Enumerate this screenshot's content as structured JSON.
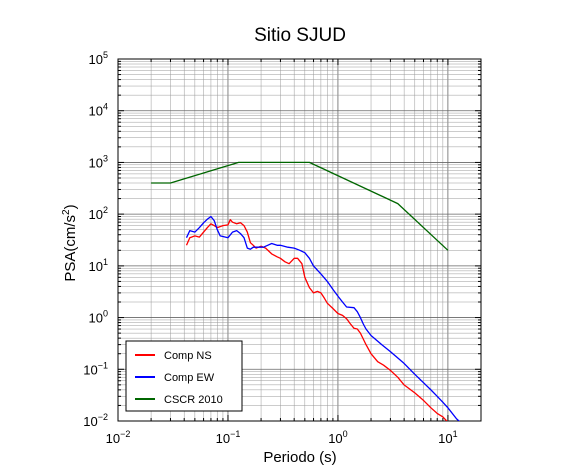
{
  "chart_data": {
    "type": "line",
    "title": "Sitio SJUD",
    "xlabel": "Periodo (s)",
    "ylabel_main": "PSA(cm/s",
    "ylabel_sup": "2",
    "ylabel_close": ")",
    "xscale": "log",
    "yscale": "log",
    "xlim": [
      0.01,
      20
    ],
    "ylim": [
      0.01,
      100000
    ],
    "grid": true,
    "legend_position": "bottom-left",
    "x_tick_labels": [
      {
        "base": "10",
        "exp": "−2",
        "value": 0.01
      },
      {
        "base": "10",
        "exp": "−1",
        "value": 0.1
      },
      {
        "base": "10",
        "exp": "0",
        "value": 1
      },
      {
        "base": "10",
        "exp": "1",
        "value": 10
      }
    ],
    "y_tick_labels": [
      {
        "base": "10",
        "exp": "−2",
        "value": 0.01
      },
      {
        "base": "10",
        "exp": "−1",
        "value": 0.1
      },
      {
        "base": "10",
        "exp": "0",
        "value": 1
      },
      {
        "base": "10",
        "exp": "1",
        "value": 10
      },
      {
        "base": "10",
        "exp": "2",
        "value": 100
      },
      {
        "base": "10",
        "exp": "3",
        "value": 1000
      },
      {
        "base": "10",
        "exp": "4",
        "value": 10000
      },
      {
        "base": "10",
        "exp": "5",
        "value": 100000
      }
    ],
    "series": [
      {
        "name": "Comp NS",
        "color": "#ff0000",
        "points": [
          [
            0.042,
            25
          ],
          [
            0.045,
            35
          ],
          [
            0.05,
            38
          ],
          [
            0.055,
            36
          ],
          [
            0.06,
            45
          ],
          [
            0.065,
            55
          ],
          [
            0.07,
            65
          ],
          [
            0.075,
            60
          ],
          [
            0.08,
            55
          ],
          [
            0.09,
            60
          ],
          [
            0.1,
            62
          ],
          [
            0.105,
            78
          ],
          [
            0.11,
            70
          ],
          [
            0.12,
            65
          ],
          [
            0.13,
            68
          ],
          [
            0.14,
            60
          ],
          [
            0.15,
            45
          ],
          [
            0.16,
            28
          ],
          [
            0.17,
            25
          ],
          [
            0.18,
            22
          ],
          [
            0.2,
            24
          ],
          [
            0.22,
            22
          ],
          [
            0.25,
            17
          ],
          [
            0.28,
            15
          ],
          [
            0.3,
            14
          ],
          [
            0.33,
            12
          ],
          [
            0.36,
            11
          ],
          [
            0.4,
            14
          ],
          [
            0.43,
            14
          ],
          [
            0.47,
            11
          ],
          [
            0.5,
            6
          ],
          [
            0.55,
            3.8
          ],
          [
            0.6,
            3.0
          ],
          [
            0.65,
            3.2
          ],
          [
            0.7,
            3.0
          ],
          [
            0.75,
            2.4
          ],
          [
            0.8,
            1.9
          ],
          [
            0.9,
            1.5
          ],
          [
            1.0,
            1.2
          ],
          [
            1.1,
            1.1
          ],
          [
            1.2,
            0.95
          ],
          [
            1.3,
            0.75
          ],
          [
            1.4,
            0.62
          ],
          [
            1.5,
            0.6
          ],
          [
            1.6,
            0.5
          ],
          [
            1.8,
            0.3
          ],
          [
            2.0,
            0.2
          ],
          [
            2.3,
            0.14
          ],
          [
            2.6,
            0.12
          ],
          [
            3.0,
            0.095
          ],
          [
            3.5,
            0.07
          ],
          [
            4.0,
            0.05
          ],
          [
            5.0,
            0.035
          ],
          [
            6.0,
            0.025
          ],
          [
            7.0,
            0.018
          ],
          [
            8.0,
            0.014
          ],
          [
            9.0,
            0.012
          ],
          [
            10.0,
            0.0095
          ],
          [
            11.0,
            0.0085
          ]
        ]
      },
      {
        "name": "Comp EW",
        "color": "#0000ff",
        "points": [
          [
            0.042,
            35
          ],
          [
            0.045,
            48
          ],
          [
            0.05,
            45
          ],
          [
            0.055,
            55
          ],
          [
            0.06,
            68
          ],
          [
            0.065,
            80
          ],
          [
            0.07,
            90
          ],
          [
            0.075,
            75
          ],
          [
            0.08,
            50
          ],
          [
            0.085,
            38
          ],
          [
            0.09,
            37
          ],
          [
            0.1,
            35
          ],
          [
            0.11,
            45
          ],
          [
            0.12,
            48
          ],
          [
            0.13,
            42
          ],
          [
            0.14,
            35
          ],
          [
            0.15,
            22
          ],
          [
            0.16,
            21
          ],
          [
            0.17,
            23
          ],
          [
            0.19,
            23
          ],
          [
            0.21,
            23
          ],
          [
            0.23,
            25
          ],
          [
            0.25,
            27
          ],
          [
            0.28,
            25
          ],
          [
            0.3,
            25
          ],
          [
            0.35,
            23
          ],
          [
            0.4,
            22
          ],
          [
            0.45,
            20
          ],
          [
            0.5,
            18
          ],
          [
            0.55,
            14
          ],
          [
            0.6,
            10
          ],
          [
            0.7,
            7
          ],
          [
            0.8,
            5
          ],
          [
            0.9,
            3.5
          ],
          [
            1.0,
            2.6
          ],
          [
            1.1,
            2.0
          ],
          [
            1.2,
            1.6
          ],
          [
            1.4,
            1.55
          ],
          [
            1.5,
            1.3
          ],
          [
            1.6,
            1.0
          ],
          [
            1.7,
            0.75
          ],
          [
            1.8,
            0.6
          ],
          [
            2.0,
            0.45
          ],
          [
            2.5,
            0.3
          ],
          [
            3.0,
            0.22
          ],
          [
            4.0,
            0.13
          ],
          [
            5.0,
            0.08
          ],
          [
            6.0,
            0.055
          ],
          [
            7.0,
            0.04
          ],
          [
            8.0,
            0.03
          ],
          [
            9.0,
            0.023
          ],
          [
            10.0,
            0.018
          ],
          [
            12.0,
            0.011
          ],
          [
            13.0,
            0.0095
          ]
        ]
      },
      {
        "name": "CSCR 2010",
        "color": "#006600",
        "points": [
          [
            0.02,
            400
          ],
          [
            0.03,
            400
          ],
          [
            0.125,
            1000
          ],
          [
            0.55,
            1000
          ],
          [
            3.5,
            160
          ],
          [
            10.0,
            20
          ]
        ]
      }
    ]
  }
}
